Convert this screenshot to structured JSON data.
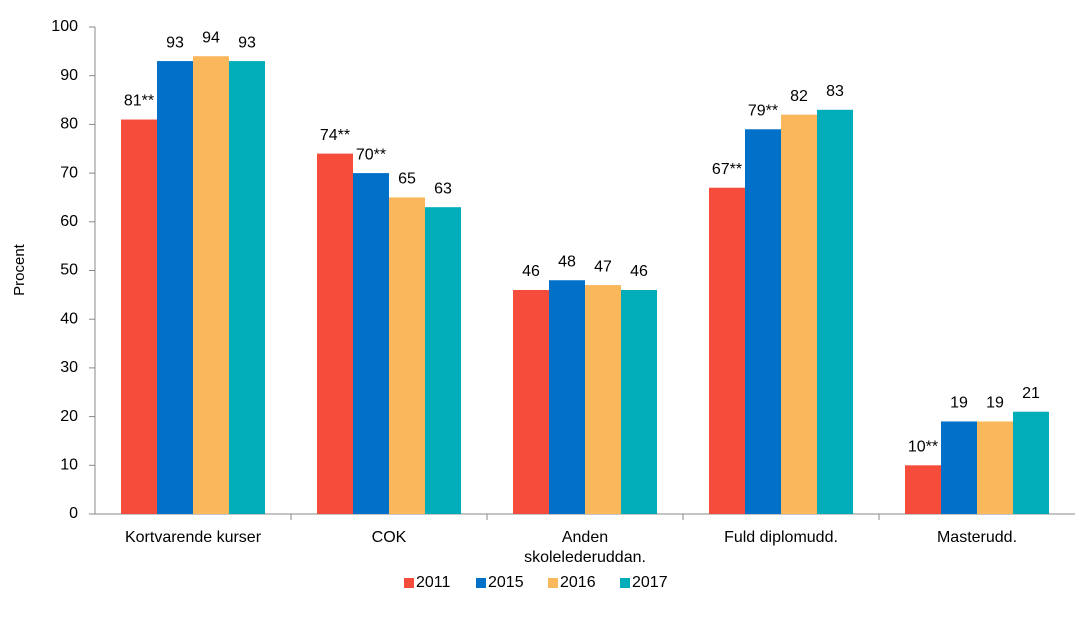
{
  "chart_data": {
    "type": "bar",
    "y_label": "Procent",
    "categories": [
      "Kortvarende kurser",
      "COK",
      "Anden skolelederuddan.",
      "Fuld diplomudd.",
      "Masterudd."
    ],
    "series": [
      {
        "name": "2011",
        "color": "#f64c3c",
        "values": [
          81,
          74,
          46,
          67,
          10
        ],
        "value_labels": [
          "81**",
          "74**",
          "46",
          "67**",
          "10**"
        ]
      },
      {
        "name": "2015",
        "color": "#0070c8",
        "values": [
          93,
          70,
          48,
          79,
          19
        ],
        "value_labels": [
          "93",
          "70**",
          "48",
          "79**",
          "19"
        ]
      },
      {
        "name": "2016",
        "color": "#fbb75b",
        "values": [
          94,
          65,
          47,
          82,
          19
        ]
      },
      {
        "name": "2017",
        "color": "#00adb8",
        "values": [
          93,
          63,
          46,
          83,
          21
        ]
      }
    ],
    "ylim": [
      0,
      100
    ],
    "yticks": [
      0,
      10,
      20,
      30,
      40,
      50,
      60,
      70,
      80,
      90,
      100
    ],
    "grid": false,
    "legend": "bottom"
  }
}
